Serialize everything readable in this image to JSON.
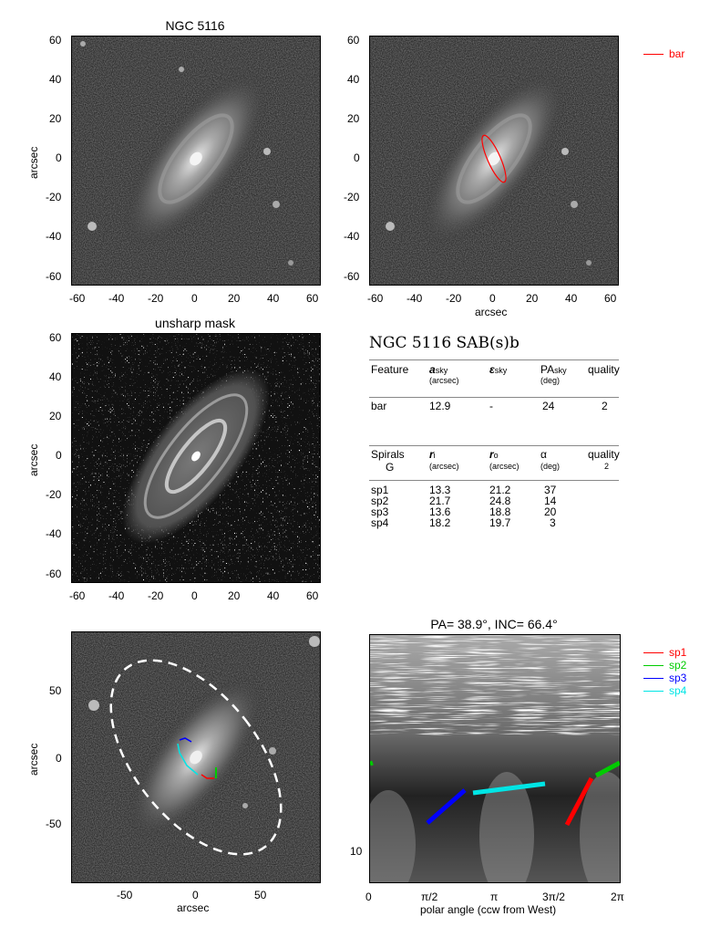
{
  "panels": {
    "p1_title": "NGC 5116",
    "p3_title": "unsharp mask",
    "p6_title": "PA=  38.9°, INC=  66.4°"
  },
  "axes": {
    "arcsec_ticks": [
      "-60",
      "-40",
      "-20",
      "0",
      "20",
      "40",
      "60"
    ],
    "arcsec_ticks_x": [
      "-60",
      "-40",
      "-20",
      "0",
      "20",
      "40",
      "60"
    ],
    "deproj_ticks": [
      "-50",
      "0",
      "50"
    ],
    "ylabel": "arcsec",
    "xlabel": "arcsec",
    "polar_ticks": [
      "0",
      "π/2",
      "π",
      "3π/2",
      "2π"
    ],
    "polar_xlabel": "polar angle (ccw from West)",
    "polar_ytick": "10"
  },
  "legend_bar": {
    "label": "bar",
    "color": "#ff0000"
  },
  "legend_spirals": [
    {
      "label": "sp1",
      "color": "#ff0000"
    },
    {
      "label": "sp2",
      "color": "#00cc00"
    },
    {
      "label": "sp3",
      "color": "#0000ff"
    },
    {
      "label": "sp4",
      "color": "#00e5e5"
    }
  ],
  "table": {
    "title": "NGC 5116  SAB(s)b",
    "bar_header": {
      "feature": "Feature",
      "a": "a",
      "a_sub": "sky",
      "a_unit": "(arcsec)",
      "eps": "ε",
      "eps_sub": "sky",
      "pa": "PA",
      "pa_sub": "sky",
      "pa_unit": "(deg)",
      "quality": "quality"
    },
    "bar_row": {
      "feature": "bar",
      "a": "12.9",
      "eps": "-",
      "pa": "24",
      "quality": "2"
    },
    "sp_header": {
      "feature": "Spirals",
      "feature2": "G",
      "ri": "r",
      "ri_sub": "i",
      "ri_unit": "(arcsec)",
      "ro": "r",
      "ro_sub": "o",
      "ro_unit": "(arcsec)",
      "alpha": "α",
      "alpha_unit": "(deg)",
      "quality": "quality",
      "quality_val": "2"
    },
    "sp_rows": [
      {
        "name": "sp1",
        "ri": "13.3",
        "ro": "21.2",
        "alpha": "37"
      },
      {
        "name": "sp2",
        "ri": "21.7",
        "ro": "24.8",
        "alpha": "14"
      },
      {
        "name": "sp3",
        "ri": "13.6",
        "ro": "18.8",
        "alpha": "20"
      },
      {
        "name": "sp4",
        "ri": "18.2",
        "ro": "19.7",
        "alpha": "3"
      }
    ]
  }
}
